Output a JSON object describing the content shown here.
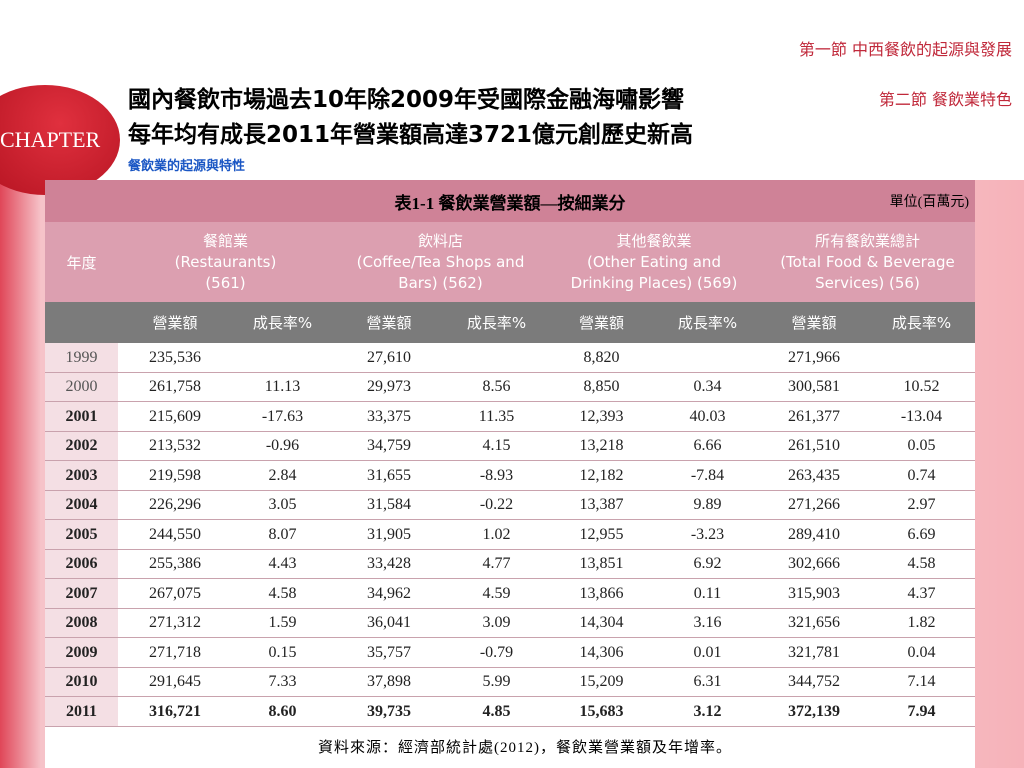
{
  "nav": [
    "第一節 中西餐飲的起源與發展",
    "第二節 餐飲業特色"
  ],
  "badge": "CHAPTER",
  "header": {
    "title": [
      "國內餐飲市場過去10年除2009年受國際金融海嘯影響",
      "每年均有成長2011年營業額高達3721億元創歷史新高"
    ],
    "subtitle": "餐飲業的起源與特性"
  },
  "table": {
    "caption": "表1-1 餐飲業營業額—按細業分",
    "unit": "單位(百萬元)",
    "year_header": "年度",
    "groups": [
      [
        "餐館業",
        "(Restaurants)",
        "(561)"
      ],
      [
        "飲料店",
        "(Coffee/Tea Shops and",
        "Bars) (562)"
      ],
      [
        "其他餐飲業",
        "(Other Eating and",
        "Drinking Places) (569)"
      ],
      [
        "所有餐飲業總計",
        "(Total Food & Beverage",
        "Services) (56)"
      ]
    ],
    "subheaders": [
      "營業額",
      "成長率%",
      "營業額",
      "成長率%",
      "營業額",
      "成長率%",
      "營業額",
      "成長率%"
    ],
    "rows": [
      [
        "1999",
        "235,536",
        null,
        "27,610",
        null,
        "8,820",
        null,
        "271,966",
        null
      ],
      [
        "2000",
        "261,758",
        "11.13",
        "29,973",
        "8.56",
        "8,850",
        "0.34",
        "300,581",
        "10.52"
      ],
      [
        "2001",
        "215,609",
        "-17.63",
        "33,375",
        "11.35",
        "12,393",
        "40.03",
        "261,377",
        "-13.04"
      ],
      [
        "2002",
        "213,532",
        "-0.96",
        "34,759",
        "4.15",
        "13,218",
        "6.66",
        "261,510",
        "0.05"
      ],
      [
        "2003",
        "219,598",
        "2.84",
        "31,655",
        "-8.93",
        "12,182",
        "-7.84",
        "263,435",
        "0.74"
      ],
      [
        "2004",
        "226,296",
        "3.05",
        "31,584",
        "-0.22",
        "13,387",
        "9.89",
        "271,266",
        "2.97"
      ],
      [
        "2005",
        "244,550",
        "8.07",
        "31,905",
        "1.02",
        "12,955",
        "-3.23",
        "289,410",
        "6.69"
      ],
      [
        "2006",
        "255,386",
        "4.43",
        "33,428",
        "4.77",
        "13,851",
        "6.92",
        "302,666",
        "4.58"
      ],
      [
        "2007",
        "267,075",
        "4.58",
        "34,962",
        "4.59",
        "13,866",
        "0.11",
        "315,903",
        "4.37"
      ],
      [
        "2008",
        "271,312",
        "1.59",
        "36,041",
        "3.09",
        "14,304",
        "3.16",
        "321,656",
        "1.82"
      ],
      [
        "2009",
        "271,718",
        "0.15",
        "35,757",
        "-0.79",
        "14,306",
        "0.01",
        "321,781",
        "0.04"
      ],
      [
        "2010",
        "291,645",
        "7.33",
        "37,898",
        "5.99",
        "15,209",
        "6.31",
        "344,752",
        "7.14"
      ],
      [
        "2011",
        "316,721",
        "8.60",
        "39,735",
        "4.85",
        "15,683",
        "3.12",
        "372,139",
        "7.94"
      ]
    ],
    "source": "資料來源：經濟部統計處(2012)，餐飲業營業額及年增率。"
  }
}
